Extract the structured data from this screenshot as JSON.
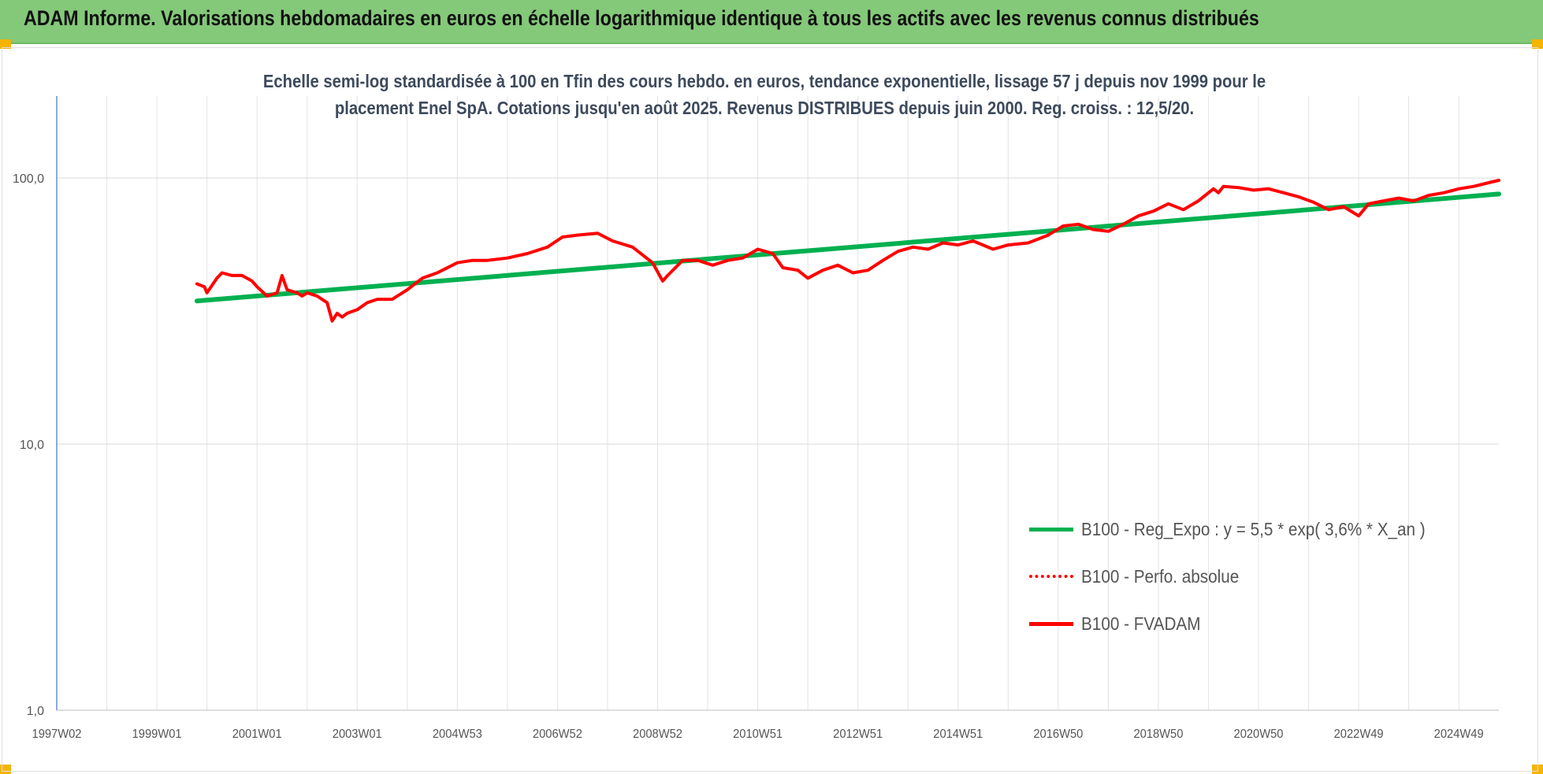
{
  "page": {
    "title": "ADAM Informe. Valorisations hebdomadaires en euros en échelle logarithmique identique à tous les actifs avec les revenus connus distribués"
  },
  "chart_data": {
    "type": "line",
    "title_lines": [
      "Echelle semi-log standardisée à 100 en Tfin des cours hebdo. en euros, tendance exponentielle, lissage 57 j depuis nov 1999 pour le",
      "placement Enel SpA. Cotations jusqu'en août 2025. Revenus DISTRIBUES depuis juin 2000. Reg. croiss. : 12,5/20."
    ],
    "y_scale": "log",
    "ylim": [
      1,
      200
    ],
    "y_ticks": [
      {
        "value": 1,
        "label": "1,0"
      },
      {
        "value": 10,
        "label": "10,0"
      },
      {
        "value": 100,
        "label": "100,0"
      }
    ],
    "xlim": [
      1997.0,
      2025.8
    ],
    "x_ticks": [
      {
        "x": 1997.0,
        "label": "1997W02"
      },
      {
        "x": 1999.0,
        "label": "1999W01"
      },
      {
        "x": 2001.0,
        "label": "2001W01"
      },
      {
        "x": 2003.0,
        "label": "2003W01"
      },
      {
        "x": 2005.0,
        "label": "2004W53"
      },
      {
        "x": 2007.0,
        "label": "2006W52"
      },
      {
        "x": 2009.0,
        "label": "2008W52"
      },
      {
        "x": 2011.0,
        "label": "2010W51"
      },
      {
        "x": 2013.0,
        "label": "2012W51"
      },
      {
        "x": 2015.0,
        "label": "2014W51"
      },
      {
        "x": 2017.0,
        "label": "2016W50"
      },
      {
        "x": 2019.0,
        "label": "2018W50"
      },
      {
        "x": 2021.0,
        "label": "2020W50"
      },
      {
        "x": 2023.0,
        "label": "2022W49"
      },
      {
        "x": 2025.0,
        "label": "2024W49"
      }
    ],
    "x_minor_ticks": [
      1998,
      2000,
      2002,
      2004,
      2006,
      2008,
      2010,
      2012,
      2014,
      2016,
      2018,
      2020,
      2022,
      2024
    ],
    "grid": true,
    "legend_position": "bottom-right",
    "series": [
      {
        "name": "B100 - Reg_Expo : y = 5,5 * exp( 3,6% *  X_an )",
        "color": "#00b050",
        "style": "solid",
        "x": [
          1999.8,
          2025.8
        ],
        "y": [
          34.5,
          87
        ]
      },
      {
        "name": "B100 - Perfo. absolue",
        "color": "#ff0000",
        "style": "dotted",
        "x": [],
        "y": []
      },
      {
        "name": "B100 - FVADAM",
        "color": "#ff0000",
        "style": "solid",
        "x": [
          1999.8,
          1999.95,
          2000.0,
          2000.2,
          2000.3,
          2000.5,
          2000.7,
          2000.9,
          2001.0,
          2001.2,
          2001.4,
          2001.5,
          2001.6,
          2001.8,
          2001.9,
          2002.0,
          2002.2,
          2002.4,
          2002.5,
          2002.6,
          2002.7,
          2002.8,
          2003.0,
          2003.2,
          2003.4,
          2003.7,
          2004.0,
          2004.3,
          2004.6,
          2005.0,
          2005.3,
          2005.6,
          2006.0,
          2006.4,
          2006.8,
          2007.1,
          2007.4,
          2007.8,
          2008.1,
          2008.5,
          2008.9,
          2009.1,
          2009.2,
          2009.5,
          2009.8,
          2010.1,
          2010.4,
          2010.7,
          2011.0,
          2011.3,
          2011.5,
          2011.8,
          2012.0,
          2012.3,
          2012.6,
          2012.9,
          2013.2,
          2013.5,
          2013.8,
          2014.1,
          2014.4,
          2014.7,
          2015.0,
          2015.3,
          2015.7,
          2016.0,
          2016.4,
          2016.8,
          2017.1,
          2017.4,
          2017.7,
          2018.0,
          2018.3,
          2018.6,
          2018.9,
          2019.2,
          2019.5,
          2019.8,
          2020.1,
          2020.2,
          2020.3,
          2020.6,
          2020.9,
          2021.2,
          2021.5,
          2021.8,
          2022.1,
          2022.4,
          2022.7,
          2023.0,
          2023.2,
          2023.5,
          2023.8,
          2024.1,
          2024.4,
          2024.7,
          2025.0,
          2025.3,
          2025.6,
          2025.8
        ],
        "y": [
          40,
          39,
          37,
          42,
          44,
          43,
          43,
          41,
          39,
          36,
          37,
          43,
          38,
          37,
          36,
          37,
          36,
          34,
          29,
          31,
          30,
          31,
          32,
          34,
          35,
          35,
          38,
          42,
          44,
          48,
          49,
          49,
          50,
          52,
          55,
          60,
          61,
          62,
          58,
          55,
          48,
          41,
          43,
          49,
          49,
          47,
          49,
          50,
          54,
          52,
          46,
          45,
          42,
          45,
          47,
          44,
          45,
          49,
          53,
          55,
          54,
          57,
          56,
          58,
          54,
          56,
          57,
          61,
          66,
          67,
          64,
          63,
          67,
          72,
          75,
          80,
          76,
          82,
          91,
          88,
          93,
          92,
          90,
          91,
          88,
          85,
          81,
          76,
          78,
          72,
          80,
          82,
          84,
          82,
          86,
          88,
          91,
          93,
          96,
          98
        ]
      }
    ]
  }
}
